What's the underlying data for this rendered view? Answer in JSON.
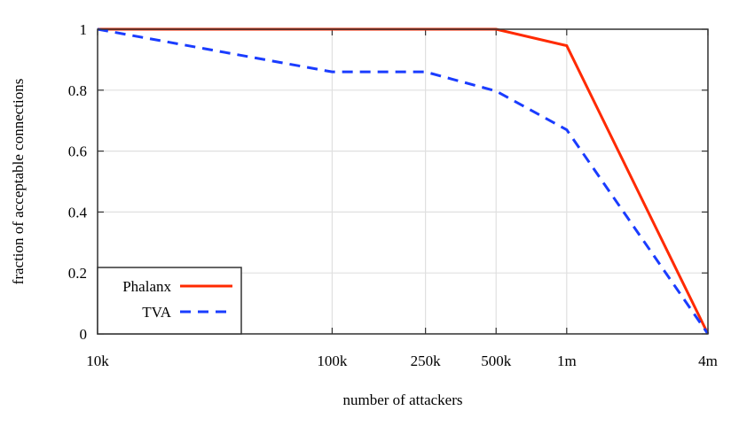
{
  "chart_data": {
    "type": "line",
    "title": "",
    "xlabel": "number of attackers",
    "ylabel": "fraction of acceptable connections",
    "xscale": "log",
    "x": [
      10000,
      100000,
      250000,
      500000,
      1000000,
      4000000
    ],
    "xtick_labels": [
      "10k",
      "100k",
      "250k",
      "500k",
      "1m",
      "4m"
    ],
    "yticks": [
      0,
      0.2,
      0.4,
      0.6,
      0.8,
      1
    ],
    "ytick_labels": [
      "0",
      "0.2",
      "0.4",
      "0.6",
      "0.8",
      "1"
    ],
    "xlim": [
      10000,
      4000000
    ],
    "ylim": [
      0,
      1
    ],
    "grid": true,
    "legend": "bottom-left",
    "series": [
      {
        "name": "Phalanx",
        "color": "#ff2a00",
        "style": "solid",
        "values": [
          1,
          1,
          1,
          1,
          0.946,
          0
        ]
      },
      {
        "name": "TVA",
        "color": "#1a3cff",
        "style": "dashed",
        "values": [
          1,
          0.86,
          0.86,
          0.797,
          0.67,
          0
        ]
      }
    ]
  }
}
